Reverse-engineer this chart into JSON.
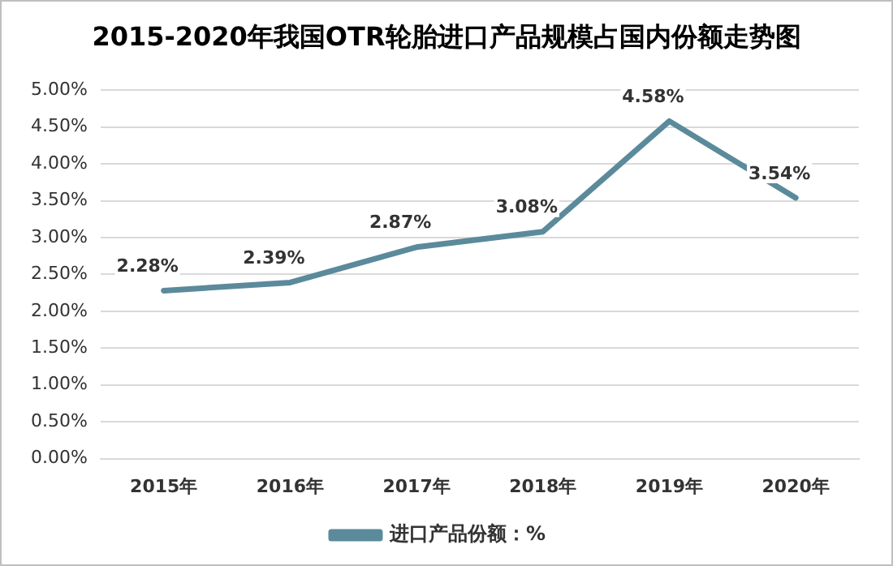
{
  "chart_data": {
    "type": "line",
    "title": "2015-2020年我国OTR轮胎进口产品规模占国内份额走势图",
    "categories": [
      "2015年",
      "2016年",
      "2017年",
      "2018年",
      "2019年",
      "2020年"
    ],
    "series": [
      {
        "name": "进口产品份额：%",
        "color": "#5b8a9b",
        "values": [
          2.28,
          2.39,
          2.87,
          3.08,
          4.58,
          3.54
        ],
        "value_labels": [
          "2.28%",
          "2.39%",
          "2.87%",
          "3.08%",
          "4.58%",
          "3.54%"
        ]
      }
    ],
    "ylim": [
      0,
      5
    ],
    "yticks": [
      {
        "value": 0,
        "label": "0.00%"
      },
      {
        "value": 0.5,
        "label": "0.50%"
      },
      {
        "value": 1,
        "label": "1.00%"
      },
      {
        "value": 1.5,
        "label": "1.50%"
      },
      {
        "value": 2,
        "label": "2.00%"
      },
      {
        "value": 2.5,
        "label": "2.50%"
      },
      {
        "value": 3,
        "label": "3.00%"
      },
      {
        "value": 3.5,
        "label": "3.50%"
      },
      {
        "value": 4,
        "label": "4.00%"
      },
      {
        "value": 4.5,
        "label": "4.50%"
      },
      {
        "value": 5,
        "label": "5.00%"
      }
    ],
    "grid": "y",
    "legend": "bottom",
    "marker": "none",
    "line_style": "solid"
  }
}
